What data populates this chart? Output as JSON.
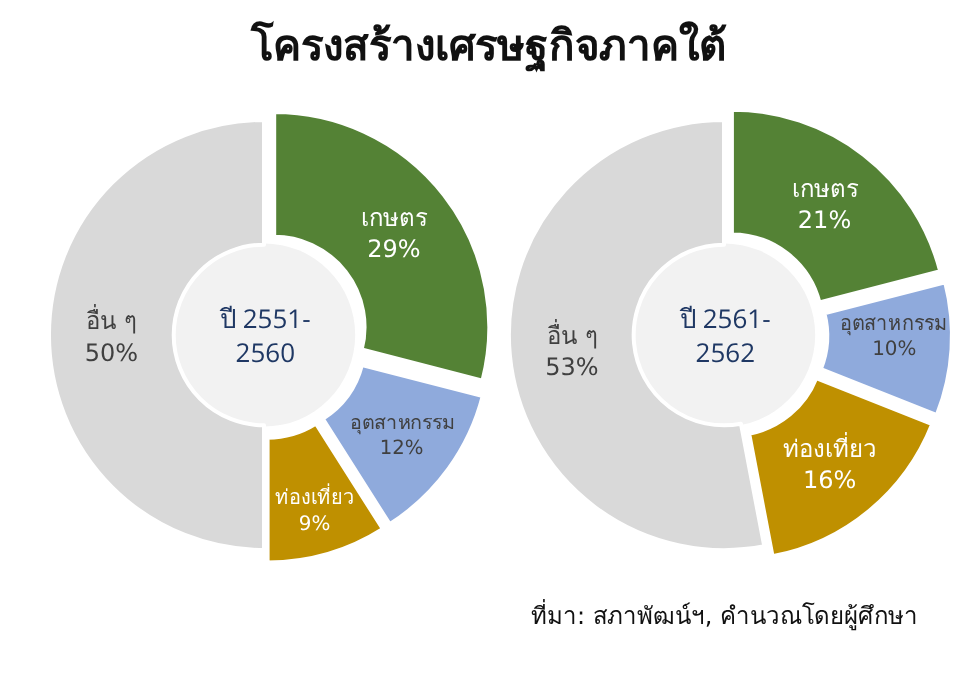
{
  "chart_data": [
    {
      "type": "donut",
      "title": "โครงสร้างเศรษฐกิจภาคใต้",
      "categories": [
        "เกษตร",
        "อุตสาหกรรม",
        "ท่องเที่ยว",
        "อื่น ๆ"
      ],
      "values": [
        29,
        12,
        9,
        50
      ],
      "value_labels": [
        "29%",
        "12%",
        "9%",
        "50%"
      ],
      "colors": [
        "#548235",
        "#8faadc",
        "#bf9000",
        "#d9d9d9"
      ],
      "annotations": [
        "ปี 2551-\n2560"
      ],
      "legend": false
    },
    {
      "type": "donut",
      "categories": [
        "เกษตร",
        "อุตสาหกรรม",
        "ท่องเที่ยว",
        "อื่น ๆ"
      ],
      "values": [
        21,
        10,
        16,
        53
      ],
      "value_labels": [
        "21%",
        "10%",
        "16%",
        "53%"
      ],
      "colors": [
        "#548235",
        "#8faadc",
        "#bf9000",
        "#d9d9d9"
      ],
      "annotations": [
        "ปี 2561-\n2562",
        "ที่มา: สภาพัฒน์ฯ, คำนวณโดยผู้ศึกษา"
      ],
      "legend": false
    }
  ]
}
